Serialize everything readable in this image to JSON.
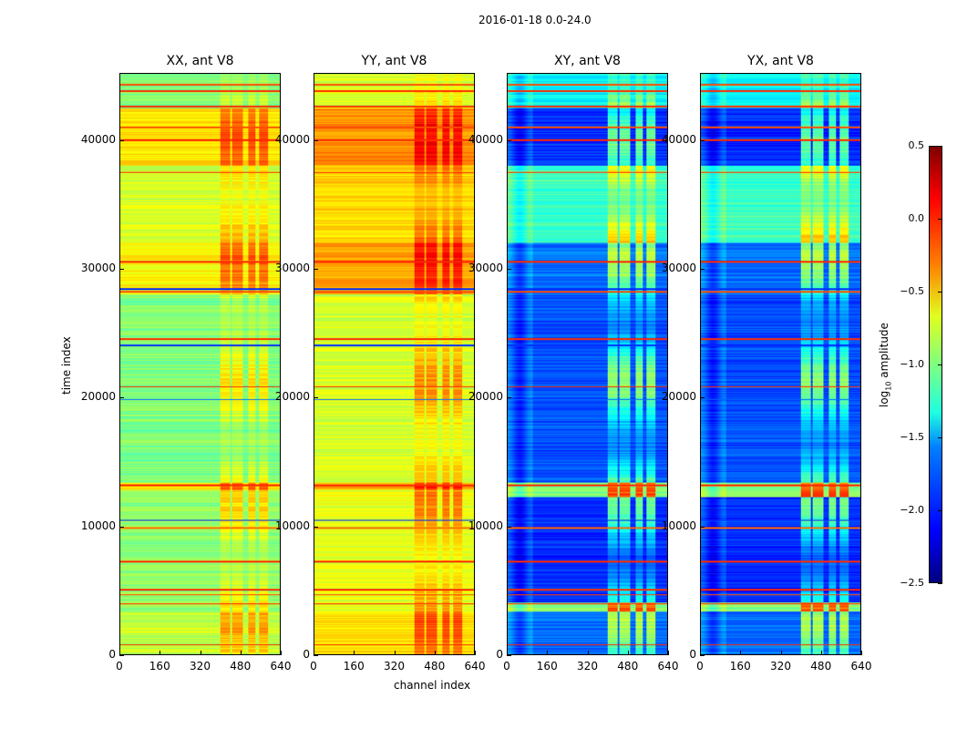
{
  "suptitle": "2016-01-18 0.0-24.0",
  "chart_data": {
    "type": "heatmap",
    "title": "2016-01-18 0.0-24.0",
    "xlabel": "channel index",
    "ylabel": "time index",
    "xlim": [
      0,
      640
    ],
    "ylim": [
      0,
      45200
    ],
    "xticks": [
      "0",
      "160",
      "320",
      "480",
      "640"
    ],
    "yticks": [
      "0",
      "10000",
      "20000",
      "30000",
      "40000"
    ],
    "xtick_values": [
      0,
      160,
      320,
      480,
      640
    ],
    "ytick_values": [
      0,
      10000,
      20000,
      30000,
      40000
    ],
    "colorbar": {
      "label_main": "log",
      "label_sub": "10",
      "label_rest": " amplitude",
      "range": [
        -2.5,
        0.5
      ],
      "ticks": [
        "0.5",
        "0.0",
        "−0.5",
        "−1.0",
        "−1.5",
        "−2.0",
        "−2.5"
      ],
      "tick_values": [
        0.5,
        0,
        -0.5,
        -1,
        -1.5,
        -2,
        -2.5
      ],
      "colormap": "jet"
    },
    "panels": [
      {
        "title": "XX, ant V8",
        "offset": 0,
        "boost": 0.45,
        "blocks": [
          [
            0,
            3300,
            -0.8
          ],
          [
            3300,
            12800,
            -0.95
          ],
          [
            12800,
            13300,
            -0.6
          ],
          [
            13300,
            28000,
            -1.0
          ],
          [
            28000,
            32000,
            -0.6
          ],
          [
            32000,
            38000,
            -0.75
          ],
          [
            38000,
            42500,
            -0.55
          ],
          [
            42500,
            45200,
            -1.0
          ]
        ]
      },
      {
        "title": "YY, ant V8",
        "offset": 0.25,
        "boost": 0.45,
        "blocks": [
          [
            0,
            3300,
            -0.8
          ],
          [
            3300,
            12800,
            -0.95
          ],
          [
            12800,
            13300,
            -0.6
          ],
          [
            13300,
            28000,
            -1.0
          ],
          [
            28000,
            32000,
            -0.6
          ],
          [
            32000,
            38000,
            -0.75
          ],
          [
            38000,
            42500,
            -0.55
          ],
          [
            42500,
            45200,
            -1.0
          ]
        ]
      },
      {
        "title": "XY, ant V8",
        "offset": 0,
        "boost": 0.95,
        "blocks": [
          [
            0,
            3300,
            -1.8
          ],
          [
            3300,
            4000,
            -1.0
          ],
          [
            4000,
            12200,
            -2.0
          ],
          [
            12200,
            13300,
            -1.0
          ],
          [
            13300,
            28000,
            -1.9
          ],
          [
            28000,
            32000,
            -1.8
          ],
          [
            32000,
            38000,
            -1.2
          ],
          [
            38000,
            42500,
            -2.0
          ],
          [
            42500,
            45200,
            -1.4
          ]
        ]
      },
      {
        "title": "YX, ant V8",
        "offset": 0,
        "boost": 0.95,
        "blocks": [
          [
            0,
            3300,
            -1.8
          ],
          [
            3300,
            4000,
            -1.0
          ],
          [
            4000,
            12200,
            -2.0
          ],
          [
            12200,
            13300,
            -1.0
          ],
          [
            13300,
            28000,
            -1.9
          ],
          [
            28000,
            32000,
            -1.8
          ],
          [
            32000,
            38000,
            -1.2
          ],
          [
            38000,
            42500,
            -2.0
          ],
          [
            42500,
            45200,
            -1.4
          ]
        ]
      }
    ],
    "channel_bands": [
      [
        400,
        440
      ],
      [
        445,
        490
      ],
      [
        510,
        540
      ],
      [
        555,
        590
      ]
    ],
    "stripes": [
      [
        700,
        0.0
      ],
      [
        3900,
        0.0
      ],
      [
        4600,
        -0.1
      ],
      [
        5000,
        0.0
      ],
      [
        7200,
        0.0
      ],
      [
        9800,
        -0.2
      ],
      [
        10400,
        -2.0
      ],
      [
        13100,
        0.0
      ],
      [
        19800,
        -1.8
      ],
      [
        20800,
        0.0
      ],
      [
        24000,
        -2.0
      ],
      [
        24500,
        0.0
      ],
      [
        28200,
        -0.1
      ],
      [
        28400,
        -2.0
      ],
      [
        30500,
        0.0
      ],
      [
        37500,
        0.0
      ],
      [
        40000,
        0.0
      ],
      [
        41000,
        -0.1
      ],
      [
        42600,
        0.0
      ],
      [
        43800,
        0.0
      ],
      [
        44300,
        -0.1
      ]
    ]
  }
}
